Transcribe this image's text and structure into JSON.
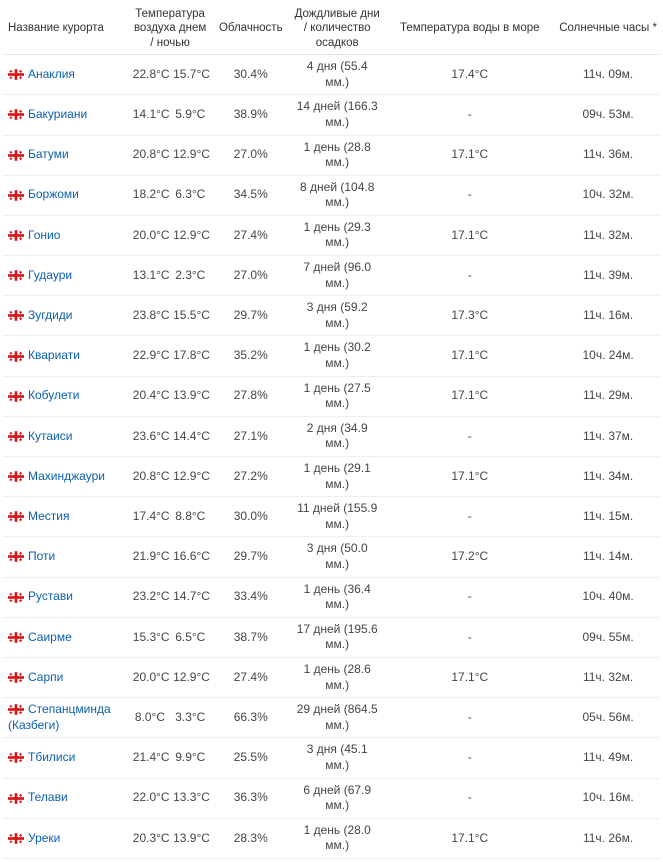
{
  "headers": {
    "name": "Название курорта",
    "temp_day_night": "Температура воздуха днем / ночью",
    "cloud": "Облачность",
    "rain": "Дождливые дни / количество осадков",
    "sea": "Температура воды в море",
    "sun": "Солнечные часы *"
  },
  "colors": {
    "link": "#0b5fb1",
    "text": "#444444",
    "border": "#eeeeee",
    "header_border": "#e5e5e5",
    "flag_red": "#d7141a",
    "flag_white": "#ffffff"
  },
  "rows": [
    {
      "name": "Анаклия",
      "day": "22.8°C",
      "night": "15.7°C",
      "cloud": "30.4%",
      "rain": "4 дня (55.4 мм.)",
      "sea": "17.4°C",
      "sun": "11ч. 09м."
    },
    {
      "name": "Бакуриани",
      "day": "14.1°C",
      "night": "5.9°C",
      "cloud": "38.9%",
      "rain": "14 дней (166.3 мм.)",
      "sea": "-",
      "sun": "09ч. 53м."
    },
    {
      "name": "Батуми",
      "day": "20.8°C",
      "night": "12.9°C",
      "cloud": "27.0%",
      "rain": "1 день (28.8 мм.)",
      "sea": "17.1°C",
      "sun": "11ч. 36м."
    },
    {
      "name": "Боржоми",
      "day": "18.2°C",
      "night": "6.3°C",
      "cloud": "34.5%",
      "rain": "8 дней (104.8 мм.)",
      "sea": "-",
      "sun": "10ч. 32м."
    },
    {
      "name": "Гонио",
      "day": "20.0°C",
      "night": "12.9°C",
      "cloud": "27.4%",
      "rain": "1 день (29.3 мм.)",
      "sea": "17.1°C",
      "sun": "11ч. 32м."
    },
    {
      "name": "Гудаури",
      "day": "13.1°C",
      "night": "2.3°C",
      "cloud": "27.0%",
      "rain": "7 дней (96.0 мм.)",
      "sea": "-",
      "sun": "11ч. 39м."
    },
    {
      "name": "Зугдиди",
      "day": "23.8°C",
      "night": "15.5°C",
      "cloud": "29.7%",
      "rain": "3 дня (59.2 мм.)",
      "sea": "17.3°C",
      "sun": "11ч. 16м."
    },
    {
      "name": "Квариати",
      "day": "22.9°C",
      "night": "17.8°C",
      "cloud": "35.2%",
      "rain": "1 день (30.2 мм.)",
      "sea": "17.1°C",
      "sun": "10ч. 24м."
    },
    {
      "name": "Кобулети",
      "day": "20.4°C",
      "night": "13.9°C",
      "cloud": "27.8%",
      "rain": "1 день (27.5 мм.)",
      "sea": "17.1°C",
      "sun": "11ч. 29м."
    },
    {
      "name": "Кутаиси",
      "day": "23.6°C",
      "night": "14.4°C",
      "cloud": "27.1%",
      "rain": "2 дня (34.9 мм.)",
      "sea": "-",
      "sun": "11ч. 37м."
    },
    {
      "name": "Махинджаури",
      "day": "20.8°C",
      "night": "12.9°C",
      "cloud": "27.2%",
      "rain": "1 день (29.1 мм.)",
      "sea": "17.1°C",
      "sun": "11ч. 34м."
    },
    {
      "name": "Местия",
      "day": "17.4°C",
      "night": "8.8°C",
      "cloud": "30.0%",
      "rain": "11 дней (155.9 мм.)",
      "sea": "-",
      "sun": "11ч. 15м."
    },
    {
      "name": "Поти",
      "day": "21.9°C",
      "night": "16.6°C",
      "cloud": "29.7%",
      "rain": "3 дня (50.0 мм.)",
      "sea": "17.2°C",
      "sun": "11ч. 14м."
    },
    {
      "name": "Рустави",
      "day": "23.2°C",
      "night": "14.7°C",
      "cloud": "33.4%",
      "rain": "1 день (36.4 мм.)",
      "sea": "-",
      "sun": "10ч. 40м."
    },
    {
      "name": "Саирме",
      "day": "15.3°C",
      "night": "6.5°C",
      "cloud": "38.7%",
      "rain": "17 дней (195.6 мм.)",
      "sea": "-",
      "sun": "09ч. 55м."
    },
    {
      "name": "Сарпи",
      "day": "20.0°C",
      "night": "12.9°C",
      "cloud": "27.4%",
      "rain": "1 день (28.6 мм.)",
      "sea": "17.1°C",
      "sun": "11ч. 32м."
    },
    {
      "name": "Степанцминда (Казбеги)",
      "day": "8.0°C",
      "night": "3.3°C",
      "cloud": "66.3%",
      "rain": "29 дней (864.5 мм.)",
      "sea": "-",
      "sun": "05ч. 56м."
    },
    {
      "name": "Тбилиси",
      "day": "21.4°C",
      "night": "9.9°C",
      "cloud": "25.5%",
      "rain": "3 дня (45.1 мм.)",
      "sea": "-",
      "sun": "11ч. 49м."
    },
    {
      "name": "Телави",
      "day": "22.0°C",
      "night": "13.3°C",
      "cloud": "36.3%",
      "rain": "6 дней (67.9 мм.)",
      "sea": "-",
      "sun": "10ч. 16м."
    },
    {
      "name": "Уреки",
      "day": "20.3°C",
      "night": "13.9°C",
      "cloud": "28.3%",
      "rain": "1 день (28.0 мм.)",
      "sea": "17.1°C",
      "sun": "11ч. 26м."
    }
  ]
}
